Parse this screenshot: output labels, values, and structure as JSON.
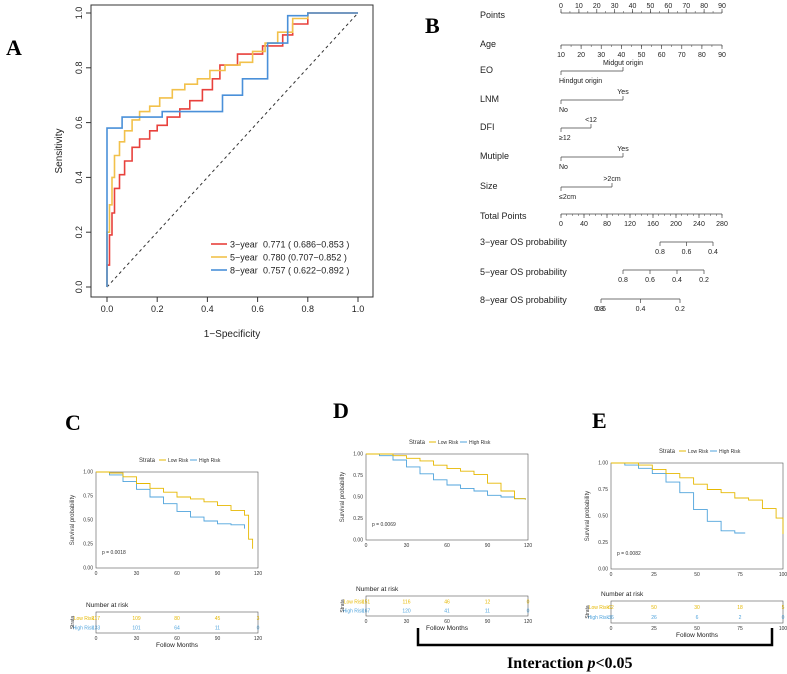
{
  "panels": {
    "A": "A",
    "B": "B",
    "C": "C",
    "D": "D",
    "E": "E"
  },
  "chart_data": [
    {
      "id": "roc",
      "type": "line",
      "xlabel": "1−Specificity",
      "ylabel": "Sensitivity",
      "xlim": [
        0,
        1
      ],
      "ylim": [
        0,
        1
      ],
      "ticks": [
        "0.0",
        "0.2",
        "0.4",
        "0.6",
        "0.8",
        "1.0"
      ],
      "series": [
        {
          "name": "3−year",
          "label": "3−year",
          "auc": "0.771 ( 0.686−0.853 )",
          "color": "#E8413C",
          "x": [
            0,
            0,
            0.01,
            0.01,
            0.02,
            0.02,
            0.03,
            0.03,
            0.05,
            0.05,
            0.07,
            0.07,
            0.1,
            0.1,
            0.13,
            0.13,
            0.17,
            0.17,
            0.2,
            0.2,
            0.24,
            0.24,
            0.29,
            0.29,
            0.33,
            0.33,
            0.38,
            0.38,
            0.42,
            0.42,
            0.45,
            0.45,
            0.52,
            0.52,
            0.55,
            0.55,
            0.62,
            0.62,
            0.7,
            0.7,
            0.74,
            0.74,
            0.8,
            0.8,
            1.0
          ],
          "y": [
            0,
            0.08,
            0.08,
            0.19,
            0.19,
            0.27,
            0.27,
            0.36,
            0.36,
            0.41,
            0.41,
            0.46,
            0.46,
            0.51,
            0.51,
            0.54,
            0.54,
            0.57,
            0.57,
            0.59,
            0.59,
            0.62,
            0.62,
            0.65,
            0.65,
            0.68,
            0.68,
            0.72,
            0.72,
            0.76,
            0.76,
            0.81,
            0.81,
            0.85,
            0.85,
            0.85,
            0.85,
            0.88,
            0.88,
            0.92,
            0.92,
            0.96,
            0.96,
            1.0,
            1.0
          ]
        },
        {
          "name": "5−year",
          "label": "5−year",
          "auc": "0.780 (0.707−0.852 )",
          "color": "#F2C14B",
          "x": [
            0,
            0,
            0.01,
            0.01,
            0.02,
            0.02,
            0.03,
            0.03,
            0.05,
            0.05,
            0.07,
            0.07,
            0.1,
            0.1,
            0.13,
            0.13,
            0.17,
            0.17,
            0.21,
            0.21,
            0.26,
            0.26,
            0.31,
            0.31,
            0.36,
            0.36,
            0.41,
            0.41,
            0.47,
            0.47,
            0.53,
            0.53,
            0.58,
            0.58,
            0.63,
            0.63,
            0.68,
            0.68,
            0.74,
            0.74,
            0.8,
            0.8,
            1.0
          ],
          "y": [
            0,
            0.2,
            0.2,
            0.3,
            0.3,
            0.4,
            0.4,
            0.48,
            0.48,
            0.53,
            0.53,
            0.57,
            0.57,
            0.61,
            0.61,
            0.64,
            0.64,
            0.66,
            0.66,
            0.69,
            0.69,
            0.72,
            0.72,
            0.74,
            0.74,
            0.76,
            0.76,
            0.79,
            0.79,
            0.81,
            0.81,
            0.82,
            0.82,
            0.86,
            0.86,
            0.89,
            0.89,
            0.93,
            0.93,
            0.98,
            0.98,
            1.0,
            1.0
          ]
        },
        {
          "name": "8−year",
          "label": "8−year",
          "auc": "0.757 ( 0.622−0.892 )",
          "color": "#4A90D9",
          "x": [
            0,
            0,
            0.01,
            0.01,
            0.06,
            0.06,
            0.13,
            0.13,
            0.22,
            0.22,
            0.37,
            0.37,
            0.46,
            0.46,
            0.54,
            0.54,
            0.64,
            0.64,
            0.72,
            0.72,
            0.8,
            0.8,
            1.0
          ],
          "y": [
            0,
            0.58,
            0.58,
            0.58,
            0.58,
            0.62,
            0.62,
            0.62,
            0.62,
            0.64,
            0.64,
            0.64,
            0.64,
            0.7,
            0.7,
            0.76,
            0.76,
            0.89,
            0.89,
            0.99,
            0.99,
            1.0,
            1.0
          ]
        }
      ]
    },
    {
      "id": "nomogram",
      "type": "table",
      "rows": [
        {
          "name": "Points",
          "ticks": [
            "0",
            "10",
            "20",
            "30",
            "40",
            "50",
            "60",
            "70",
            "80",
            "90"
          ],
          "side": "above",
          "minor": true
        },
        {
          "name": "Age",
          "ticks": [
            "10",
            "20",
            "30",
            "40",
            "50",
            "60",
            "70",
            "80",
            "90"
          ],
          "side": "below",
          "minor": true
        },
        {
          "name": "EO",
          "levels": [
            {
              "text": "Midgut origin",
              "where": "above"
            },
            {
              "text": "Hindgut origin",
              "where": "below"
            }
          ]
        },
        {
          "name": "LNM",
          "levels": [
            {
              "text": "Yes",
              "where": "above"
            },
            {
              "text": "No",
              "where": "below"
            }
          ]
        },
        {
          "name": "DFI",
          "levels": [
            {
              "text": "<12",
              "where": "above"
            },
            {
              "text": "≥12",
              "where": "below"
            }
          ]
        },
        {
          "name": "Mutiple",
          "levels": [
            {
              "text": "Yes",
              "where": "above"
            },
            {
              "text": "No",
              "where": "below"
            }
          ]
        },
        {
          "name": "Size",
          "levels": [
            {
              "text": ">2cm",
              "where": "above"
            },
            {
              "text": "≤2cm",
              "where": "below"
            }
          ]
        },
        {
          "name": "Total Points",
          "ticks": [
            "0",
            "40",
            "80",
            "120",
            "160",
            "200",
            "240",
            "280"
          ],
          "side": "below",
          "minor": true
        },
        {
          "name": "3−year OS probability",
          "ticks": [
            "0.8",
            "0.6",
            "0.4"
          ],
          "side": "below"
        },
        {
          "name": "5−year OS probability",
          "ticks": [
            "0.8",
            "0.6",
            "0.4",
            "0.2"
          ],
          "side": "below"
        },
        {
          "name": "8−year OS probability",
          "ticks": [
            "0.6",
            "0.4",
            "0.2"
          ],
          "extra": "0.8",
          "side": "below"
        }
      ]
    },
    {
      "id": "kmC",
      "type": "line",
      "title": "Strata",
      "legend": [
        "Low Risk",
        "High Risk"
      ],
      "ylabel": "Survival probability",
      "xlabel": "Follow Months",
      "pvalue": "p = 0.0018",
      "yticks": [
        "1.00",
        "0.75",
        "0.50",
        "0.25",
        "0.00"
      ],
      "xticks": [
        "0",
        "30",
        "60",
        "90",
        "120"
      ],
      "xmax": 120,
      "low": {
        "color": "#E6B800",
        "x": [
          0,
          10,
          20,
          30,
          40,
          50,
          60,
          70,
          80,
          90,
          100,
          110,
          113,
          116
        ],
        "y": [
          1.0,
          0.99,
          0.95,
          0.88,
          0.83,
          0.79,
          0.74,
          0.72,
          0.69,
          0.65,
          0.6,
          0.55,
          0.3,
          0.2
        ]
      },
      "high": {
        "color": "#4FA3DC",
        "x": [
          0,
          10,
          20,
          30,
          40,
          50,
          60,
          70,
          80,
          90,
          100,
          110
        ],
        "y": [
          1.0,
          0.97,
          0.9,
          0.82,
          0.74,
          0.67,
          0.59,
          0.53,
          0.49,
          0.46,
          0.45,
          0.41
        ]
      },
      "risk": {
        "title": "Number at risk",
        "strata_label": "Strata",
        "rows": [
          {
            "label": "Low Risk",
            "values": [
              "117",
              "109",
              "80",
              "45",
              "3"
            ]
          },
          {
            "label": "High Risk",
            "values": [
              "133",
              "101",
              "64",
              "11",
              "0"
            ]
          }
        ]
      }
    },
    {
      "id": "kmD",
      "type": "line",
      "title": "Strata",
      "legend": [
        "Low Risk",
        "High Risk"
      ],
      "ylabel": "Survival probability",
      "xlabel": "Follow Months",
      "pvalue": "p = 0.0069",
      "yticks": [
        "1.00",
        "0.75",
        "0.50",
        "0.25",
        "0.00"
      ],
      "xticks": [
        "0",
        "30",
        "60",
        "90",
        "120"
      ],
      "xmax": 120,
      "low": {
        "color": "#E6B800",
        "x": [
          0,
          10,
          20,
          30,
          40,
          50,
          60,
          70,
          80,
          90,
          100,
          110,
          118
        ],
        "y": [
          1.0,
          1.0,
          0.98,
          0.95,
          0.92,
          0.87,
          0.83,
          0.8,
          0.76,
          0.66,
          0.57,
          0.48,
          0.47
        ]
      },
      "high": {
        "color": "#4FA3DC",
        "x": [
          0,
          10,
          20,
          30,
          40,
          50,
          60,
          70,
          80,
          90,
          100,
          110,
          118
        ],
        "y": [
          1.0,
          0.98,
          0.93,
          0.85,
          0.77,
          0.7,
          0.64,
          0.6,
          0.57,
          0.52,
          0.5,
          0.48,
          0.47
        ]
      },
      "risk": {
        "title": "Number at risk",
        "strata_label": "Strata",
        "rows": [
          {
            "label": "Low Risk",
            "values": [
              "151",
              "116",
              "46",
              "12",
              "0"
            ]
          },
          {
            "label": "High Risk",
            "values": [
              "167",
              "120",
              "41",
              "11",
              "0"
            ]
          }
        ]
      }
    },
    {
      "id": "kmE",
      "type": "line",
      "title": "Strata",
      "legend": [
        "Low Risk",
        "High Risk"
      ],
      "ylabel": "Survival probability",
      "xlabel": "Follow Months",
      "pvalue": "p = 0.0082",
      "yticks": [
        "1.00",
        "0.75",
        "0.50",
        "0.25",
        "0.00"
      ],
      "xticks": [
        "0",
        "25",
        "50",
        "75",
        "100"
      ],
      "xmax": 100,
      "low": {
        "color": "#E6B800",
        "x": [
          0,
          8,
          16,
          24,
          32,
          40,
          48,
          56,
          64,
          72,
          80,
          88,
          96,
          100
        ],
        "y": [
          1.0,
          1.0,
          0.98,
          0.94,
          0.9,
          0.86,
          0.8,
          0.75,
          0.72,
          0.67,
          0.65,
          0.57,
          0.48,
          0.33
        ]
      },
      "high": {
        "color": "#4FA3DC",
        "x": [
          0,
          8,
          16,
          24,
          32,
          40,
          48,
          56,
          64,
          72,
          78
        ],
        "y": [
          1.0,
          0.98,
          0.95,
          0.9,
          0.82,
          0.72,
          0.56,
          0.45,
          0.36,
          0.34,
          0.34
        ]
      },
      "risk": {
        "title": "Number at risk",
        "strata_label": "Strata",
        "rows": [
          {
            "label": "Low Risk",
            "values": [
              "62",
              "50",
              "30",
              "18",
              "5"
            ]
          },
          {
            "label": "High Risk",
            "values": [
              "36",
              "26",
              "6",
              "2",
              "0"
            ]
          }
        ]
      }
    }
  ],
  "footer": {
    "text": "Interaction ",
    "italic": "p",
    "tail": "<0.05"
  }
}
